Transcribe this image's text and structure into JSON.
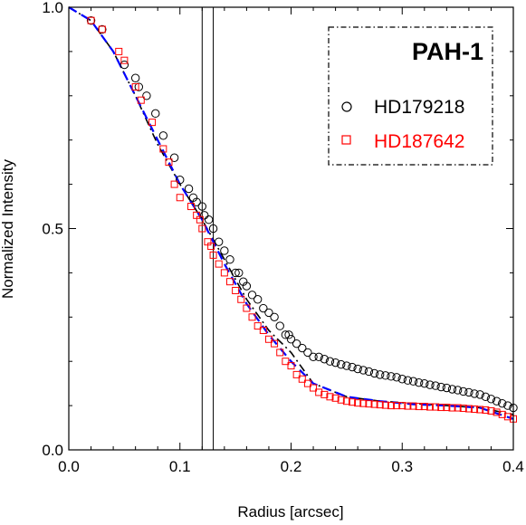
{
  "chart_data": {
    "type": "scatter",
    "title": "",
    "xlabel": "Radius [arcsec]",
    "ylabel": "Normalized Intensity",
    "xlim": [
      0.0,
      0.4
    ],
    "ylim": [
      0.0,
      1.0
    ],
    "x_ticks": [
      "0.0",
      "0.1",
      "0.2",
      "0.3",
      "0.4"
    ],
    "y_ticks": [
      "0.0",
      "0.5",
      "1.0"
    ],
    "grid": false,
    "legend": {
      "title": "PAH-1",
      "placement": "top-right",
      "entries": [
        "HD179218",
        "HD187642"
      ]
    },
    "vertical_lines": [
      0.12,
      0.13
    ],
    "series": [
      {
        "name": "HD179218",
        "marker": "circle",
        "color": "#000000",
        "x": [
          0.02,
          0.03,
          0.05,
          0.06,
          0.063,
          0.07,
          0.078,
          0.085,
          0.095,
          0.1,
          0.108,
          0.112,
          0.115,
          0.12,
          0.122,
          0.126,
          0.13,
          0.135,
          0.14,
          0.145,
          0.15,
          0.153,
          0.157,
          0.16,
          0.165,
          0.17,
          0.175,
          0.18,
          0.185,
          0.19,
          0.195,
          0.198,
          0.2,
          0.205,
          0.21,
          0.215,
          0.22,
          0.225,
          0.23,
          0.235,
          0.24,
          0.245,
          0.25,
          0.255,
          0.26,
          0.265,
          0.27,
          0.275,
          0.28,
          0.285,
          0.29,
          0.295,
          0.3,
          0.305,
          0.31,
          0.315,
          0.32,
          0.325,
          0.33,
          0.335,
          0.34,
          0.345,
          0.35,
          0.355,
          0.36,
          0.365,
          0.37,
          0.375,
          0.38,
          0.385,
          0.39,
          0.395,
          0.4
        ],
        "y": [
          0.97,
          0.95,
          0.87,
          0.84,
          0.82,
          0.8,
          0.76,
          0.71,
          0.66,
          0.61,
          0.59,
          0.57,
          0.56,
          0.55,
          0.53,
          0.52,
          0.5,
          0.47,
          0.45,
          0.43,
          0.4,
          0.4,
          0.38,
          0.37,
          0.35,
          0.34,
          0.32,
          0.31,
          0.3,
          0.28,
          0.26,
          0.26,
          0.25,
          0.24,
          0.23,
          0.22,
          0.21,
          0.21,
          0.205,
          0.2,
          0.197,
          0.193,
          0.19,
          0.187,
          0.183,
          0.18,
          0.177,
          0.173,
          0.17,
          0.168,
          0.166,
          0.164,
          0.16,
          0.157,
          0.155,
          0.152,
          0.15,
          0.147,
          0.145,
          0.142,
          0.14,
          0.137,
          0.135,
          0.132,
          0.13,
          0.127,
          0.125,
          0.12,
          0.115,
          0.11,
          0.105,
          0.1,
          0.095
        ]
      },
      {
        "name": "HD187642",
        "marker": "square",
        "color": "#ff0000",
        "x": [
          0.02,
          0.03,
          0.045,
          0.05,
          0.06,
          0.065,
          0.075,
          0.085,
          0.09,
          0.095,
          0.1,
          0.11,
          0.115,
          0.118,
          0.12,
          0.125,
          0.128,
          0.13,
          0.135,
          0.14,
          0.145,
          0.15,
          0.155,
          0.16,
          0.165,
          0.17,
          0.175,
          0.18,
          0.185,
          0.19,
          0.195,
          0.2,
          0.205,
          0.21,
          0.215,
          0.22,
          0.225,
          0.23,
          0.235,
          0.24,
          0.245,
          0.25,
          0.255,
          0.26,
          0.265,
          0.27,
          0.275,
          0.28,
          0.285,
          0.29,
          0.295,
          0.3,
          0.305,
          0.31,
          0.315,
          0.32,
          0.325,
          0.33,
          0.335,
          0.34,
          0.345,
          0.35,
          0.355,
          0.36,
          0.365,
          0.37,
          0.375,
          0.38,
          0.385,
          0.39,
          0.395,
          0.4
        ],
        "y": [
          0.97,
          0.95,
          0.9,
          0.88,
          0.82,
          0.79,
          0.74,
          0.68,
          0.65,
          0.6,
          0.57,
          0.55,
          0.53,
          0.52,
          0.5,
          0.47,
          0.46,
          0.44,
          0.42,
          0.4,
          0.38,
          0.36,
          0.34,
          0.32,
          0.3,
          0.28,
          0.27,
          0.25,
          0.24,
          0.22,
          0.2,
          0.19,
          0.17,
          0.16,
          0.15,
          0.14,
          0.13,
          0.125,
          0.12,
          0.117,
          0.113,
          0.11,
          0.108,
          0.106,
          0.105,
          0.104,
          0.103,
          0.102,
          0.101,
          0.1,
          0.1,
          0.1,
          0.099,
          0.099,
          0.098,
          0.098,
          0.097,
          0.097,
          0.096,
          0.096,
          0.095,
          0.095,
          0.094,
          0.093,
          0.092,
          0.091,
          0.09,
          0.088,
          0.085,
          0.08,
          0.075,
          0.07
        ]
      }
    ],
    "model_lines": [
      {
        "color": "#000000",
        "style": "dash-dot",
        "x": [
          0.0,
          0.02,
          0.04,
          0.06,
          0.08,
          0.1,
          0.12,
          0.14,
          0.16,
          0.18,
          0.2,
          0.22,
          0.25,
          0.28,
          0.31,
          0.34,
          0.37,
          0.4
        ],
        "y": [
          1.0,
          0.97,
          0.9,
          0.8,
          0.69,
          0.6,
          0.52,
          0.43,
          0.34,
          0.27,
          0.22,
          0.15,
          0.12,
          0.11,
          0.105,
          0.1,
          0.095,
          0.08
        ]
      },
      {
        "color": "#0000ff",
        "style": "dashed",
        "x": [
          0.0,
          0.02,
          0.04,
          0.06,
          0.08,
          0.1,
          0.12,
          0.14,
          0.16,
          0.18,
          0.2,
          0.22,
          0.25,
          0.28,
          0.31,
          0.34,
          0.37,
          0.4
        ],
        "y": [
          1.0,
          0.97,
          0.9,
          0.8,
          0.7,
          0.6,
          0.52,
          0.42,
          0.33,
          0.26,
          0.2,
          0.15,
          0.12,
          0.11,
          0.103,
          0.1,
          0.095,
          0.07
        ]
      }
    ]
  }
}
